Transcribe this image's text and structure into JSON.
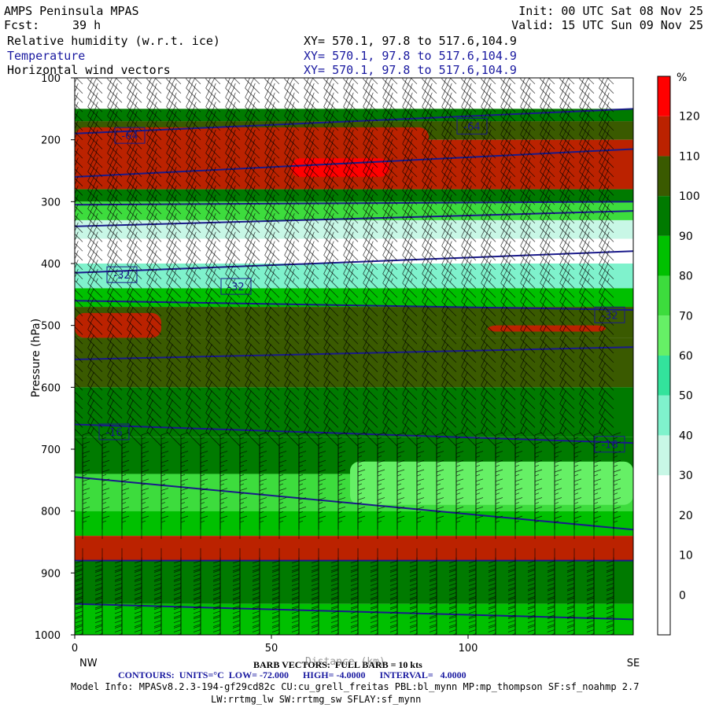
{
  "header": {
    "model": "AMPS Peninsula MPAS",
    "init": "Init: 00 UTC Sat 08 Nov 25",
    "fcst_label": "Fcst:",
    "fcst_value": "39 h",
    "valid": "Valid: 15 UTC Sun 09 Nov 25",
    "field1": "Relative humidity (w.r.t. ice)",
    "field2": "Temperature",
    "field3": "Horizontal wind vectors",
    "xy1": "XY= 570.1, 97.8 to 517.6,104.9",
    "xy2": "XY= 570.1, 97.8 to 517.6,104.9",
    "xy3": "XY= 570.1, 97.8 to 517.6,104.9"
  },
  "footer": {
    "barb_text": "BARB VECTORS:  FULL BARB = 10 kts",
    "distance_label": "Distance (km)",
    "contours": "CONTOURS:  UNITS=°C  LOW= -72.000      HIGH= -4.0000      INTERVAL=   4.0000",
    "model_info": "Model Info: MPASv8.2.3-194-gf29cd82c CU:cu_grell_freitas PBL:bl_mynn MP:mp_thompson SF:sf_noahmp 2.7",
    "model_info2": "LW:rrtmg_lw SW:rrtmg_sw SFLAY:sf_mynn"
  },
  "chart_data": {
    "type": "heatmap",
    "xlabel": "",
    "ylabel": "Pressure (hPa)",
    "x_ticks": [
      0,
      50,
      100
    ],
    "x_end_labels": [
      "NW",
      "SE"
    ],
    "xlim": [
      0,
      142
    ],
    "y_ticks": [
      100,
      200,
      300,
      400,
      500,
      600,
      700,
      800,
      900,
      1000
    ],
    "ylim": [
      1000,
      100
    ],
    "colorbar": {
      "unit": "%",
      "ticks": [
        0,
        10,
        20,
        30,
        40,
        50,
        60,
        70,
        80,
        90,
        100,
        110,
        120
      ],
      "levels": [
        -10,
        0,
        10,
        20,
        30,
        40,
        50,
        60,
        70,
        80,
        90,
        100,
        110,
        120,
        130
      ],
      "colors": [
        "#ffffff",
        "#ffffff",
        "#ffffff",
        "#ffffff",
        "#c8f7e6",
        "#7ff2cc",
        "#33e39c",
        "#66f066",
        "#3ddc3d",
        "#00c000",
        "#007a00",
        "#3a5a00",
        "#bb2200",
        "#ff0000"
      ]
    },
    "rh_layers": [
      {
        "p": [
          100,
          150
        ],
        "rh": 0
      },
      {
        "p": [
          150,
          170
        ],
        "rh": 95
      },
      {
        "p": [
          170,
          200
        ],
        "rh": 105
      },
      {
        "p": [
          200,
          280
        ],
        "rh": 115
      },
      {
        "p": [
          280,
          300
        ],
        "rh": 95
      },
      {
        "p": [
          300,
          330
        ],
        "rh": 75
      },
      {
        "p": [
          330,
          360
        ],
        "rh": 35
      },
      {
        "p": [
          360,
          400
        ],
        "rh": 10
      },
      {
        "p": [
          400,
          440
        ],
        "rh": 45
      },
      {
        "p": [
          440,
          470
        ],
        "rh": 85
      },
      {
        "p": [
          470,
          520
        ],
        "rh": 100
      },
      {
        "p": [
          520,
          600
        ],
        "rh": 105
      },
      {
        "p": [
          600,
          680
        ],
        "rh": 95
      },
      {
        "p": [
          680,
          740
        ],
        "rh": 90
      },
      {
        "p": [
          740,
          800
        ],
        "rh": 75
      },
      {
        "p": [
          800,
          840
        ],
        "rh": 85
      },
      {
        "p": [
          840,
          880
        ],
        "rh": 112
      },
      {
        "p": [
          880,
          950
        ],
        "rh": 95
      },
      {
        "p": [
          950,
          1000
        ],
        "rh": 85
      }
    ],
    "rh_patches": [
      {
        "x": [
          0,
          90
        ],
        "p": [
          180,
          230
        ],
        "rh": 115
      },
      {
        "x": [
          55,
          80
        ],
        "p": [
          230,
          260
        ],
        "rh": 125
      },
      {
        "x": [
          113,
          122
        ],
        "p": [
          232,
          262
        ],
        "rh": 115
      },
      {
        "x": [
          0,
          22
        ],
        "p": [
          480,
          520
        ],
        "rh": 115
      },
      {
        "x": [
          105,
          135
        ],
        "p": [
          500,
          510
        ],
        "rh": 115
      },
      {
        "x": [
          70,
          142
        ],
        "p": [
          720,
          790
        ],
        "rh": 65
      },
      {
        "x": [
          50,
          142
        ],
        "p": [
          850,
          880
        ],
        "rh": 115
      }
    ],
    "temperature_series": [
      {
        "x": [
          0,
          142
        ],
        "p": [
          190,
          150
        ]
      },
      {
        "x": [
          0,
          142
        ],
        "p": [
          260,
          215
        ]
      },
      {
        "x": [
          0,
          142
        ],
        "p": [
          305,
          300
        ]
      },
      {
        "x": [
          0,
          142
        ],
        "p": [
          340,
          315
        ]
      },
      {
        "x": [
          0,
          142
        ],
        "p": [
          415,
          380
        ]
      },
      {
        "x": [
          0,
          142
        ],
        "p": [
          460,
          475
        ]
      },
      {
        "x": [
          0,
          142
        ],
        "p": [
          555,
          535
        ]
      },
      {
        "x": [
          0,
          142
        ],
        "p": [
          660,
          690
        ]
      },
      {
        "x": [
          0,
          142
        ],
        "p": [
          745,
          830
        ]
      },
      {
        "x": [
          0,
          142
        ],
        "p": [
          880,
          880
        ]
      },
      {
        "x": [
          0,
          142
        ],
        "p": [
          950,
          975
        ]
      }
    ],
    "temperature_labels": [
      {
        "text": "-64",
        "x": 14,
        "p": 193
      },
      {
        "text": "-64",
        "x": 101,
        "p": 178
      },
      {
        "text": "-32",
        "x": 12,
        "p": 418
      },
      {
        "text": "-32",
        "x": 41,
        "p": 437
      },
      {
        "text": "-32",
        "x": 136,
        "p": 483
      },
      {
        "text": "-16",
        "x": 10,
        "p": 672
      },
      {
        "text": "-16",
        "x": 136,
        "p": 692
      }
    ],
    "wind_barbs_kts": [
      {
        "p": [
          100,
          450
        ],
        "speed": 35,
        "dir_from": "NW"
      },
      {
        "p": [
          450,
          700
        ],
        "speed": 20,
        "dir_from": "NW"
      },
      {
        "p": [
          700,
          860
        ],
        "speed": 15,
        "dir_from": "N"
      },
      {
        "p": [
          860,
          1000
        ],
        "speed": 30,
        "dir_from": "S"
      }
    ]
  }
}
